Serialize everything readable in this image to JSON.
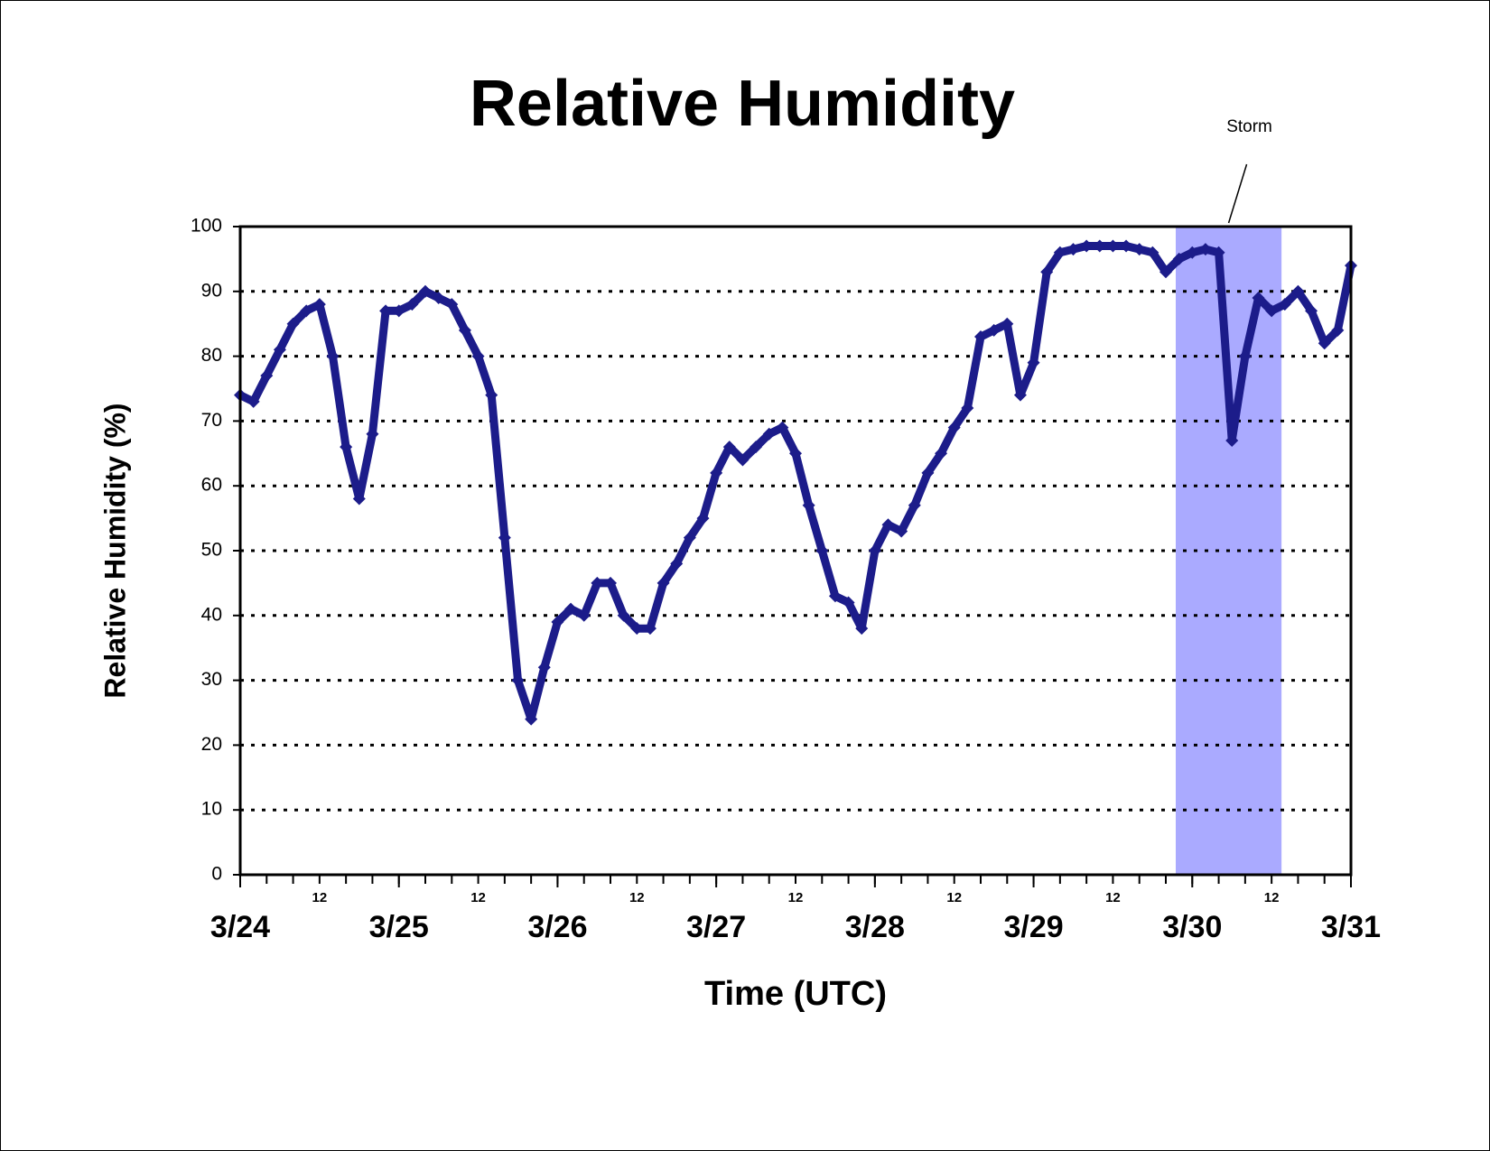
{
  "chart_data": {
    "type": "line",
    "title": "Relative Humidity",
    "x_label": "Time (UTC)",
    "y_label": "Relative Humidity (%)",
    "xlim": [
      0,
      168
    ],
    "ylim": [
      0,
      100
    ],
    "yticks": [
      0,
      10,
      20,
      30,
      40,
      50,
      60,
      70,
      80,
      90,
      100
    ],
    "xticks": [
      {
        "value": 0,
        "label": "3/24"
      },
      {
        "value": 24,
        "label": "3/25"
      },
      {
        "value": 48,
        "label": "3/26"
      },
      {
        "value": 72,
        "label": "3/27"
      },
      {
        "value": 96,
        "label": "3/28"
      },
      {
        "value": 120,
        "label": "3/29"
      },
      {
        "value": 144,
        "label": "3/30"
      },
      {
        "value": 168,
        "label": "3/31"
      }
    ],
    "xticks_midday": [
      {
        "value": 12,
        "label": "12"
      },
      {
        "value": 36,
        "label": "12"
      },
      {
        "value": 60,
        "label": "12"
      },
      {
        "value": 84,
        "label": "12"
      },
      {
        "value": 108,
        "label": "12"
      },
      {
        "value": 132,
        "label": "12"
      },
      {
        "value": 156,
        "label": "12"
      }
    ],
    "xminor_ticks": [
      0,
      4,
      8,
      12,
      16,
      20,
      24,
      28,
      32,
      36,
      40,
      44,
      48,
      52,
      56,
      60,
      64,
      68,
      72,
      76,
      80,
      84,
      88,
      92,
      96,
      100,
      104,
      108,
      112,
      116,
      120,
      124,
      128,
      132,
      136,
      140,
      144,
      148,
      152,
      156,
      160,
      164,
      168
    ],
    "grid": true,
    "shaded_region": {
      "x": [
        141.5,
        157.5
      ],
      "color": "#aaaaff",
      "label": "Storm"
    },
    "series": [
      {
        "name": "Relative Humidity",
        "color": "#1c1c8a",
        "x": [
          0,
          2,
          4,
          6,
          8,
          10,
          12,
          14,
          16,
          18,
          20,
          22,
          24,
          26,
          28,
          30,
          32,
          34,
          36,
          38,
          40,
          42,
          44,
          46,
          48,
          50,
          52,
          54,
          56,
          58,
          60,
          62,
          64,
          66,
          68,
          70,
          72,
          74,
          76,
          78,
          80,
          82,
          84,
          86,
          88,
          90,
          92,
          94,
          96,
          98,
          100,
          102,
          104,
          106,
          108,
          110,
          112,
          114,
          116,
          118,
          120,
          122,
          124,
          126,
          128,
          130,
          132,
          134,
          136,
          138,
          140,
          142,
          144,
          146,
          148,
          150,
          152,
          154,
          156,
          158,
          160,
          162,
          164,
          166,
          168
        ],
        "values": [
          74,
          73,
          77,
          81,
          85,
          87,
          88,
          80,
          66,
          58,
          68,
          87,
          87,
          88,
          90,
          89,
          88,
          84,
          80,
          74,
          52,
          30,
          24,
          32,
          39,
          41,
          40,
          45,
          45,
          40,
          38,
          38,
          45,
          48,
          52,
          55,
          62,
          66,
          64,
          66,
          68,
          69,
          65,
          57,
          50,
          43,
          42,
          38,
          50,
          54,
          53,
          57,
          62,
          65,
          69,
          72,
          83,
          84,
          85,
          74,
          79,
          93,
          96,
          96.5,
          97,
          97,
          97,
          97,
          96.5,
          96,
          93,
          95,
          96,
          96.5,
          96,
          67,
          80,
          89,
          87,
          88,
          90,
          87,
          82,
          84,
          94
        ]
      }
    ]
  }
}
